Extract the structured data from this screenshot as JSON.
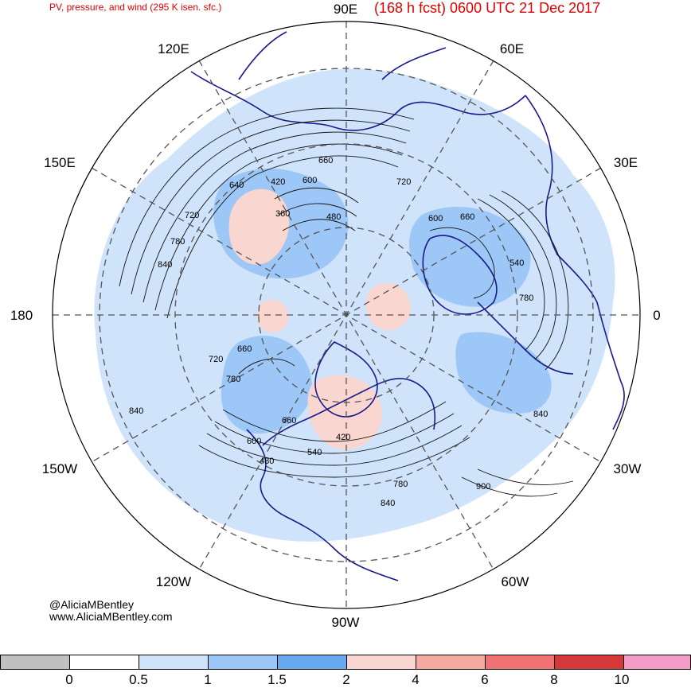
{
  "header": {
    "product_title": "PV, pressure, and wind (295 K isen. sfc.)",
    "forecast_title": "(168 h fcst) 0600 UTC 21 Dec 2017"
  },
  "longitude_labels": {
    "lon_90e": "90E",
    "lon_60e": "60E",
    "lon_120e": "120E",
    "lon_150e": "150E",
    "lon_30e": "30E",
    "lon_180": "180",
    "lon_0": "0",
    "lon_150w": "150W",
    "lon_30w": "30W",
    "lon_120w": "120W",
    "lon_60w": "60W",
    "lon_90w": "90W"
  },
  "contour_labels": {
    "c1": "660",
    "c2": "420",
    "c3": "600",
    "c4": "640",
    "c5": "720",
    "c6": "360",
    "c7": "480",
    "c8": "720",
    "c9": "600",
    "c10": "660",
    "c11": "780",
    "c12": "840",
    "c13": "540",
    "c14": "780",
    "c15": "720",
    "c16": "780",
    "c17": "840",
    "c18": "660",
    "c19": "600",
    "c20": "420",
    "c21": "540",
    "c22": "480",
    "c23": "780",
    "c24": "900",
    "c25": "840",
    "c26": "840",
    "c27": "660"
  },
  "credits": {
    "handle": "@AliciaMBentley",
    "website": "www.AliciaMBentley.com"
  },
  "colorbar": {
    "bins": [
      {
        "color": "#c0c0c0"
      },
      {
        "color": "#ffffff"
      },
      {
        "color": "#cfe3fb"
      },
      {
        "color": "#9cc7f7"
      },
      {
        "color": "#68aaf2"
      },
      {
        "color": "#f9d6cf"
      },
      {
        "color": "#f7aaa1"
      },
      {
        "color": "#f27373"
      },
      {
        "color": "#d43838"
      },
      {
        "color": "#f29bc7"
      }
    ],
    "ticks": {
      "t0": "0",
      "t1": "0.5",
      "t2": "1",
      "t3": "1.5",
      "t4": "2",
      "t5": "4",
      "t6": "6",
      "t7": "8",
      "t8": "10"
    }
  },
  "colors": {
    "title_red": "#e00000",
    "coastline": "#1a1a8c",
    "contour": "#111111",
    "grid": "#555555"
  }
}
